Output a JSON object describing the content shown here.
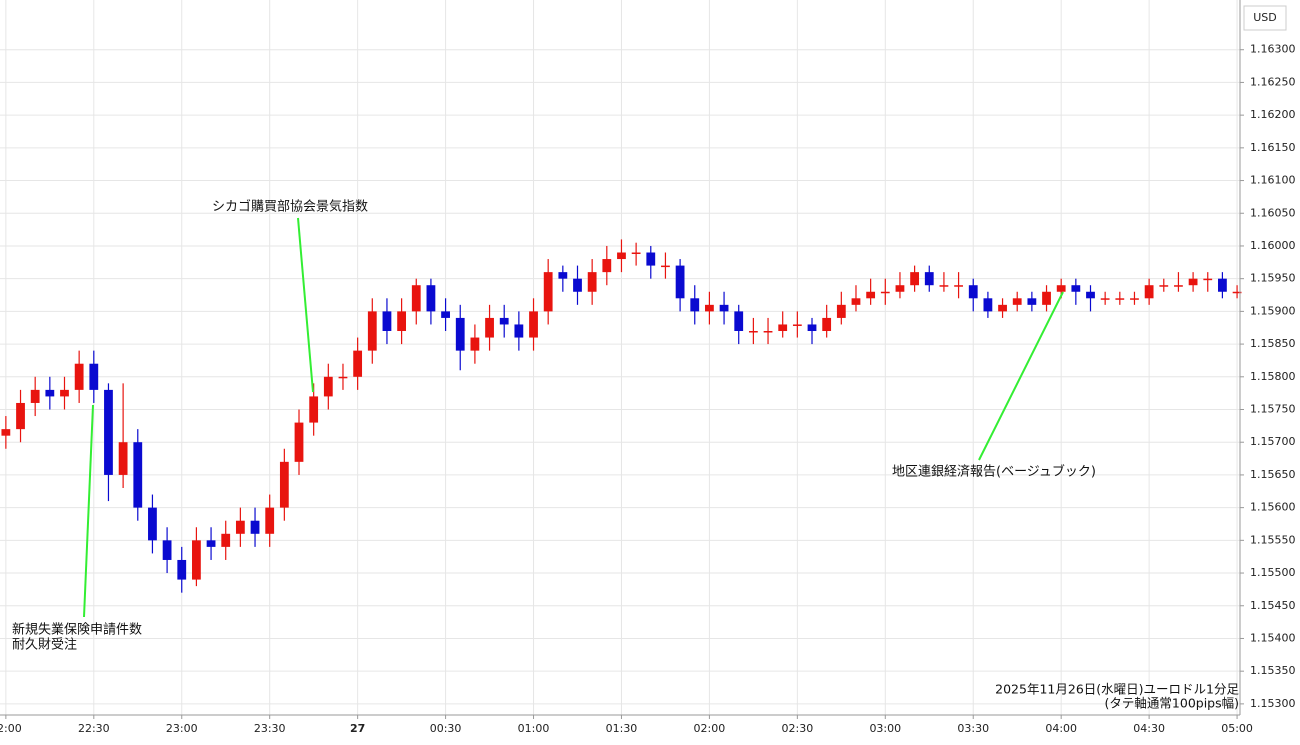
{
  "chart_data": {
    "type": "candlestick",
    "currency_label": "USD",
    "note": [
      "2025年11月26日(水曜日)ユーロドル1分足",
      "(タテ軸通常100pips幅)"
    ],
    "annotations": [
      {
        "lines": [
          "新規失業保険申請件数",
          "耐久財受注"
        ]
      },
      {
        "lines": [
          "シカゴ購買部協会景気指数"
        ]
      },
      {
        "lines": [
          "地区連銀経済報告(ベージュブック)"
        ]
      }
    ],
    "up_color": "#e8140f",
    "down_color": "#0a0ad0",
    "grid": true,
    "x": [
      "22:00",
      "22:05",
      "22:10",
      "22:15",
      "22:20",
      "22:25",
      "22:30",
      "22:35",
      "22:40",
      "22:45",
      "22:50",
      "22:55",
      "23:00",
      "23:05",
      "23:10",
      "23:15",
      "23:20",
      "23:25",
      "23:30",
      "23:35",
      "23:40",
      "23:45",
      "23:50",
      "23:55",
      "00:00",
      "00:05",
      "00:10",
      "00:15",
      "00:20",
      "00:25",
      "00:30",
      "00:35",
      "00:40",
      "00:45",
      "00:50",
      "00:55",
      "01:00",
      "01:05",
      "01:10",
      "01:15",
      "01:20",
      "01:25",
      "01:30",
      "01:35",
      "01:40",
      "01:45",
      "01:50",
      "01:55",
      "02:00",
      "02:05",
      "02:10",
      "02:15",
      "02:20",
      "02:25",
      "02:30",
      "02:35",
      "02:40",
      "02:45",
      "02:50",
      "02:55",
      "03:00",
      "03:05",
      "03:10",
      "03:15",
      "03:20",
      "03:25",
      "03:30",
      "03:35",
      "03:40",
      "03:45",
      "03:50",
      "03:55",
      "04:00",
      "04:05",
      "04:10",
      "04:15",
      "04:20",
      "04:25",
      "04:30",
      "04:35",
      "04:40",
      "04:45",
      "04:50",
      "04:55",
      "05:00"
    ],
    "open": [
      1.1571,
      1.1572,
      1.1576,
      1.1578,
      1.1577,
      1.1578,
      1.1582,
      1.1578,
      1.1565,
      1.157,
      1.156,
      1.1555,
      1.1552,
      1.1549,
      1.1555,
      1.1554,
      1.1556,
      1.1558,
      1.1556,
      1.156,
      1.1567,
      1.1573,
      1.1577,
      1.158,
      1.158,
      1.1584,
      1.159,
      1.1587,
      1.159,
      1.1594,
      1.159,
      1.1589,
      1.1584,
      1.1586,
      1.1589,
      1.1588,
      1.1586,
      1.159,
      1.1596,
      1.1595,
      1.1593,
      1.1596,
      1.1598,
      1.1599,
      1.1599,
      1.1597,
      1.1597,
      1.1592,
      1.159,
      1.1591,
      1.159,
      1.1587,
      1.1587,
      1.1587,
      1.1588,
      1.1588,
      1.1587,
      1.1589,
      1.1591,
      1.1592,
      1.1593,
      1.1593,
      1.1594,
      1.1596,
      1.1594,
      1.1594,
      1.1594,
      1.1592,
      1.159,
      1.1591,
      1.1592,
      1.1591,
      1.1593,
      1.1594,
      1.1593,
      1.1592,
      1.1592,
      1.1592,
      1.1592,
      1.1594,
      1.1594,
      1.1594,
      1.1595,
      1.1595,
      1.1593
    ],
    "high": [
      1.1574,
      1.1578,
      1.158,
      1.158,
      1.158,
      1.1584,
      1.1584,
      1.1579,
      1.1579,
      1.1572,
      1.1562,
      1.1557,
      1.1554,
      1.1557,
      1.1557,
      1.1558,
      1.156,
      1.156,
      1.1562,
      1.1569,
      1.1575,
      1.1579,
      1.1582,
      1.1582,
      1.1586,
      1.1592,
      1.1592,
      1.1592,
      1.1595,
      1.1595,
      1.1592,
      1.1591,
      1.1588,
      1.1591,
      1.1591,
      1.159,
      1.1592,
      1.1598,
      1.1597,
      1.1597,
      1.1598,
      1.16,
      1.1601,
      1.16005,
      1.16,
      1.1599,
      1.1598,
      1.1594,
      1.1593,
      1.1593,
      1.1591,
      1.1589,
      1.1589,
      1.159,
      1.159,
      1.1589,
      1.1591,
      1.1593,
      1.1594,
      1.1595,
      1.1595,
      1.1596,
      1.1597,
      1.1597,
      1.1596,
      1.1596,
      1.1595,
      1.1593,
      1.1592,
      1.1593,
      1.1593,
      1.1594,
      1.1595,
      1.1595,
      1.1594,
      1.1593,
      1.1593,
      1.1593,
      1.1595,
      1.1595,
      1.1596,
      1.1596,
      1.1596,
      1.1596,
      1.1594
    ],
    "low": [
      1.1569,
      1.157,
      1.1574,
      1.1575,
      1.1575,
      1.1576,
      1.1576,
      1.1561,
      1.1563,
      1.1558,
      1.1553,
      1.155,
      1.1547,
      1.1548,
      1.1552,
      1.1552,
      1.1554,
      1.1554,
      1.1554,
      1.1558,
      1.1565,
      1.1571,
      1.1575,
      1.1578,
      1.1578,
      1.1582,
      1.1585,
      1.1585,
      1.1588,
      1.1588,
      1.1587,
      1.1581,
      1.1582,
      1.1584,
      1.1586,
      1.1584,
      1.1584,
      1.1588,
      1.1593,
      1.1591,
      1.1591,
      1.1594,
      1.1596,
      1.1597,
      1.1595,
      1.1595,
      1.159,
      1.1588,
      1.1588,
      1.1588,
      1.1585,
      1.1585,
      1.1585,
      1.1586,
      1.1586,
      1.1585,
      1.1586,
      1.1588,
      1.159,
      1.1591,
      1.1591,
      1.1592,
      1.1593,
      1.1593,
      1.1593,
      1.1592,
      1.159,
      1.1589,
      1.1589,
      1.159,
      1.159,
      1.159,
      1.1592,
      1.1591,
      1.159,
      1.1591,
      1.1591,
      1.1591,
      1.1591,
      1.1593,
      1.1593,
      1.1593,
      1.1593,
      1.1592,
      1.1592
    ],
    "close": [
      1.1572,
      1.1576,
      1.1578,
      1.1577,
      1.1578,
      1.1582,
      1.1578,
      1.1565,
      1.157,
      1.156,
      1.1555,
      1.1552,
      1.1549,
      1.1555,
      1.1554,
      1.1556,
      1.1558,
      1.1556,
      1.156,
      1.1567,
      1.1573,
      1.1577,
      1.158,
      1.158,
      1.1584,
      1.159,
      1.1587,
      1.159,
      1.1594,
      1.159,
      1.1589,
      1.1584,
      1.1586,
      1.1589,
      1.1588,
      1.1586,
      1.159,
      1.1596,
      1.1595,
      1.1593,
      1.1596,
      1.1598,
      1.1599,
      1.1599,
      1.1597,
      1.1597,
      1.1592,
      1.159,
      1.1591,
      1.159,
      1.1587,
      1.1587,
      1.1587,
      1.1588,
      1.1588,
      1.1587,
      1.1589,
      1.1591,
      1.1592,
      1.1593,
      1.1593,
      1.1594,
      1.1596,
      1.1594,
      1.1594,
      1.1594,
      1.1592,
      1.159,
      1.1591,
      1.1592,
      1.1591,
      1.1593,
      1.1594,
      1.1593,
      1.1592,
      1.1592,
      1.1592,
      1.1592,
      1.1594,
      1.1594,
      1.1594,
      1.1595,
      1.1595,
      1.1593,
      1.1593
    ],
    "xlim": [
      "21:58",
      "05:01"
    ],
    "xticks": [
      "22:00",
      "22:30",
      "23:00",
      "23:30",
      {
        "value": "00:00",
        "label": "27"
      },
      "00:30",
      "01:00",
      "01:30",
      "02:00",
      "02:30",
      "03:00",
      "03:30",
      "04:00",
      "04:30",
      "05:00"
    ],
    "ylim": [
      1.15283,
      1.16376
    ],
    "yticks": [
      {
        "value": 1.153,
        "label": "1.15300"
      },
      {
        "value": 1.1535,
        "label": "1.15350"
      },
      {
        "value": 1.154,
        "label": "1.15400"
      },
      {
        "value": 1.1545,
        "label": "1.15450"
      },
      {
        "value": 1.155,
        "label": "1.15500"
      },
      {
        "value": 1.1555,
        "label": "1.15550"
      },
      {
        "value": 1.156,
        "label": "1.15600"
      },
      {
        "value": 1.1565,
        "label": "1.15650"
      },
      {
        "value": 1.157,
        "label": "1.15700"
      },
      {
        "value": 1.1575,
        "label": "1.15750"
      },
      {
        "value": 1.158,
        "label": "1.15800"
      },
      {
        "value": 1.1585,
        "label": "1.15850"
      },
      {
        "value": 1.159,
        "label": "1.15900"
      },
      {
        "value": 1.1595,
        "label": "1.15950"
      },
      {
        "value": 1.16,
        "label": "1.16000"
      },
      {
        "value": 1.1605,
        "label": "1.16050"
      },
      {
        "value": 1.161,
        "label": "1.16100"
      },
      {
        "value": 1.1615,
        "label": "1.16150"
      },
      {
        "value": 1.162,
        "label": "1.16200"
      },
      {
        "value": 1.1625,
        "label": "1.16250"
      },
      {
        "value": 1.163,
        "label": "1.16300"
      }
    ]
  }
}
